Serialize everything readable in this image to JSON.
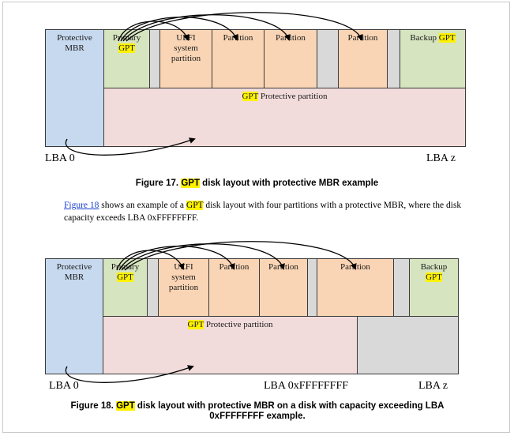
{
  "figure17": {
    "protective_mbr": "Protective MBR",
    "primary_gpt_line1": "Primary",
    "primary_gpt_line2": "GPT",
    "uefi": "UEFI system partition",
    "partition1": "Partition",
    "partition2": "Partition",
    "partition3": "Partition",
    "backup_prefix": "Backup ",
    "backup_gpt": "GPT",
    "protective_partition_gpt": "GPT",
    "protective_partition_label": " Protective partition",
    "lba0": "LBA 0",
    "lbaz": "LBA z",
    "caption_prefix": "Figure 17. ",
    "caption_gpt": "GPT",
    "caption_suffix": " disk layout with protective MBR example"
  },
  "paragraph": {
    "link": "Figure 18",
    "text1": " shows an example of a ",
    "gpt": "GPT",
    "text2": " disk layout with four partitions with a protective MBR, where the disk capacity exceeds LBA 0xFFFFFFFF."
  },
  "figure18": {
    "protective_mbr": "Protective MBR",
    "primary_gpt_line1": "Primary",
    "primary_gpt_line2": "GPT",
    "uefi": "UEFI system partition",
    "partition1": "Partition",
    "partition2": "Partition",
    "partition3": "Partition",
    "backup_line1": "Backup",
    "backup_gpt": "GPT",
    "protective_partition_gpt": "GPT",
    "protective_partition_label": " Protective partition",
    "lba0": "LBA 0",
    "lba_ffff": "LBA 0xFFFFFFFF",
    "lbaz": "LBA z",
    "caption_prefix": "Figure 18. ",
    "caption_gpt": "GPT",
    "caption_suffix": " disk layout with protective MBR on a disk with capacity exceeding LBA 0xFFFFFFFF example."
  },
  "colors": {
    "mbr": "#c7d9ef",
    "gpt_table": "#d6e4bf",
    "partition": "#fad5b5",
    "free_space": "#d9d9d9",
    "protective_partition": "#f2dcdb",
    "highlight": "#fff200",
    "link": "#1a3fd0"
  }
}
